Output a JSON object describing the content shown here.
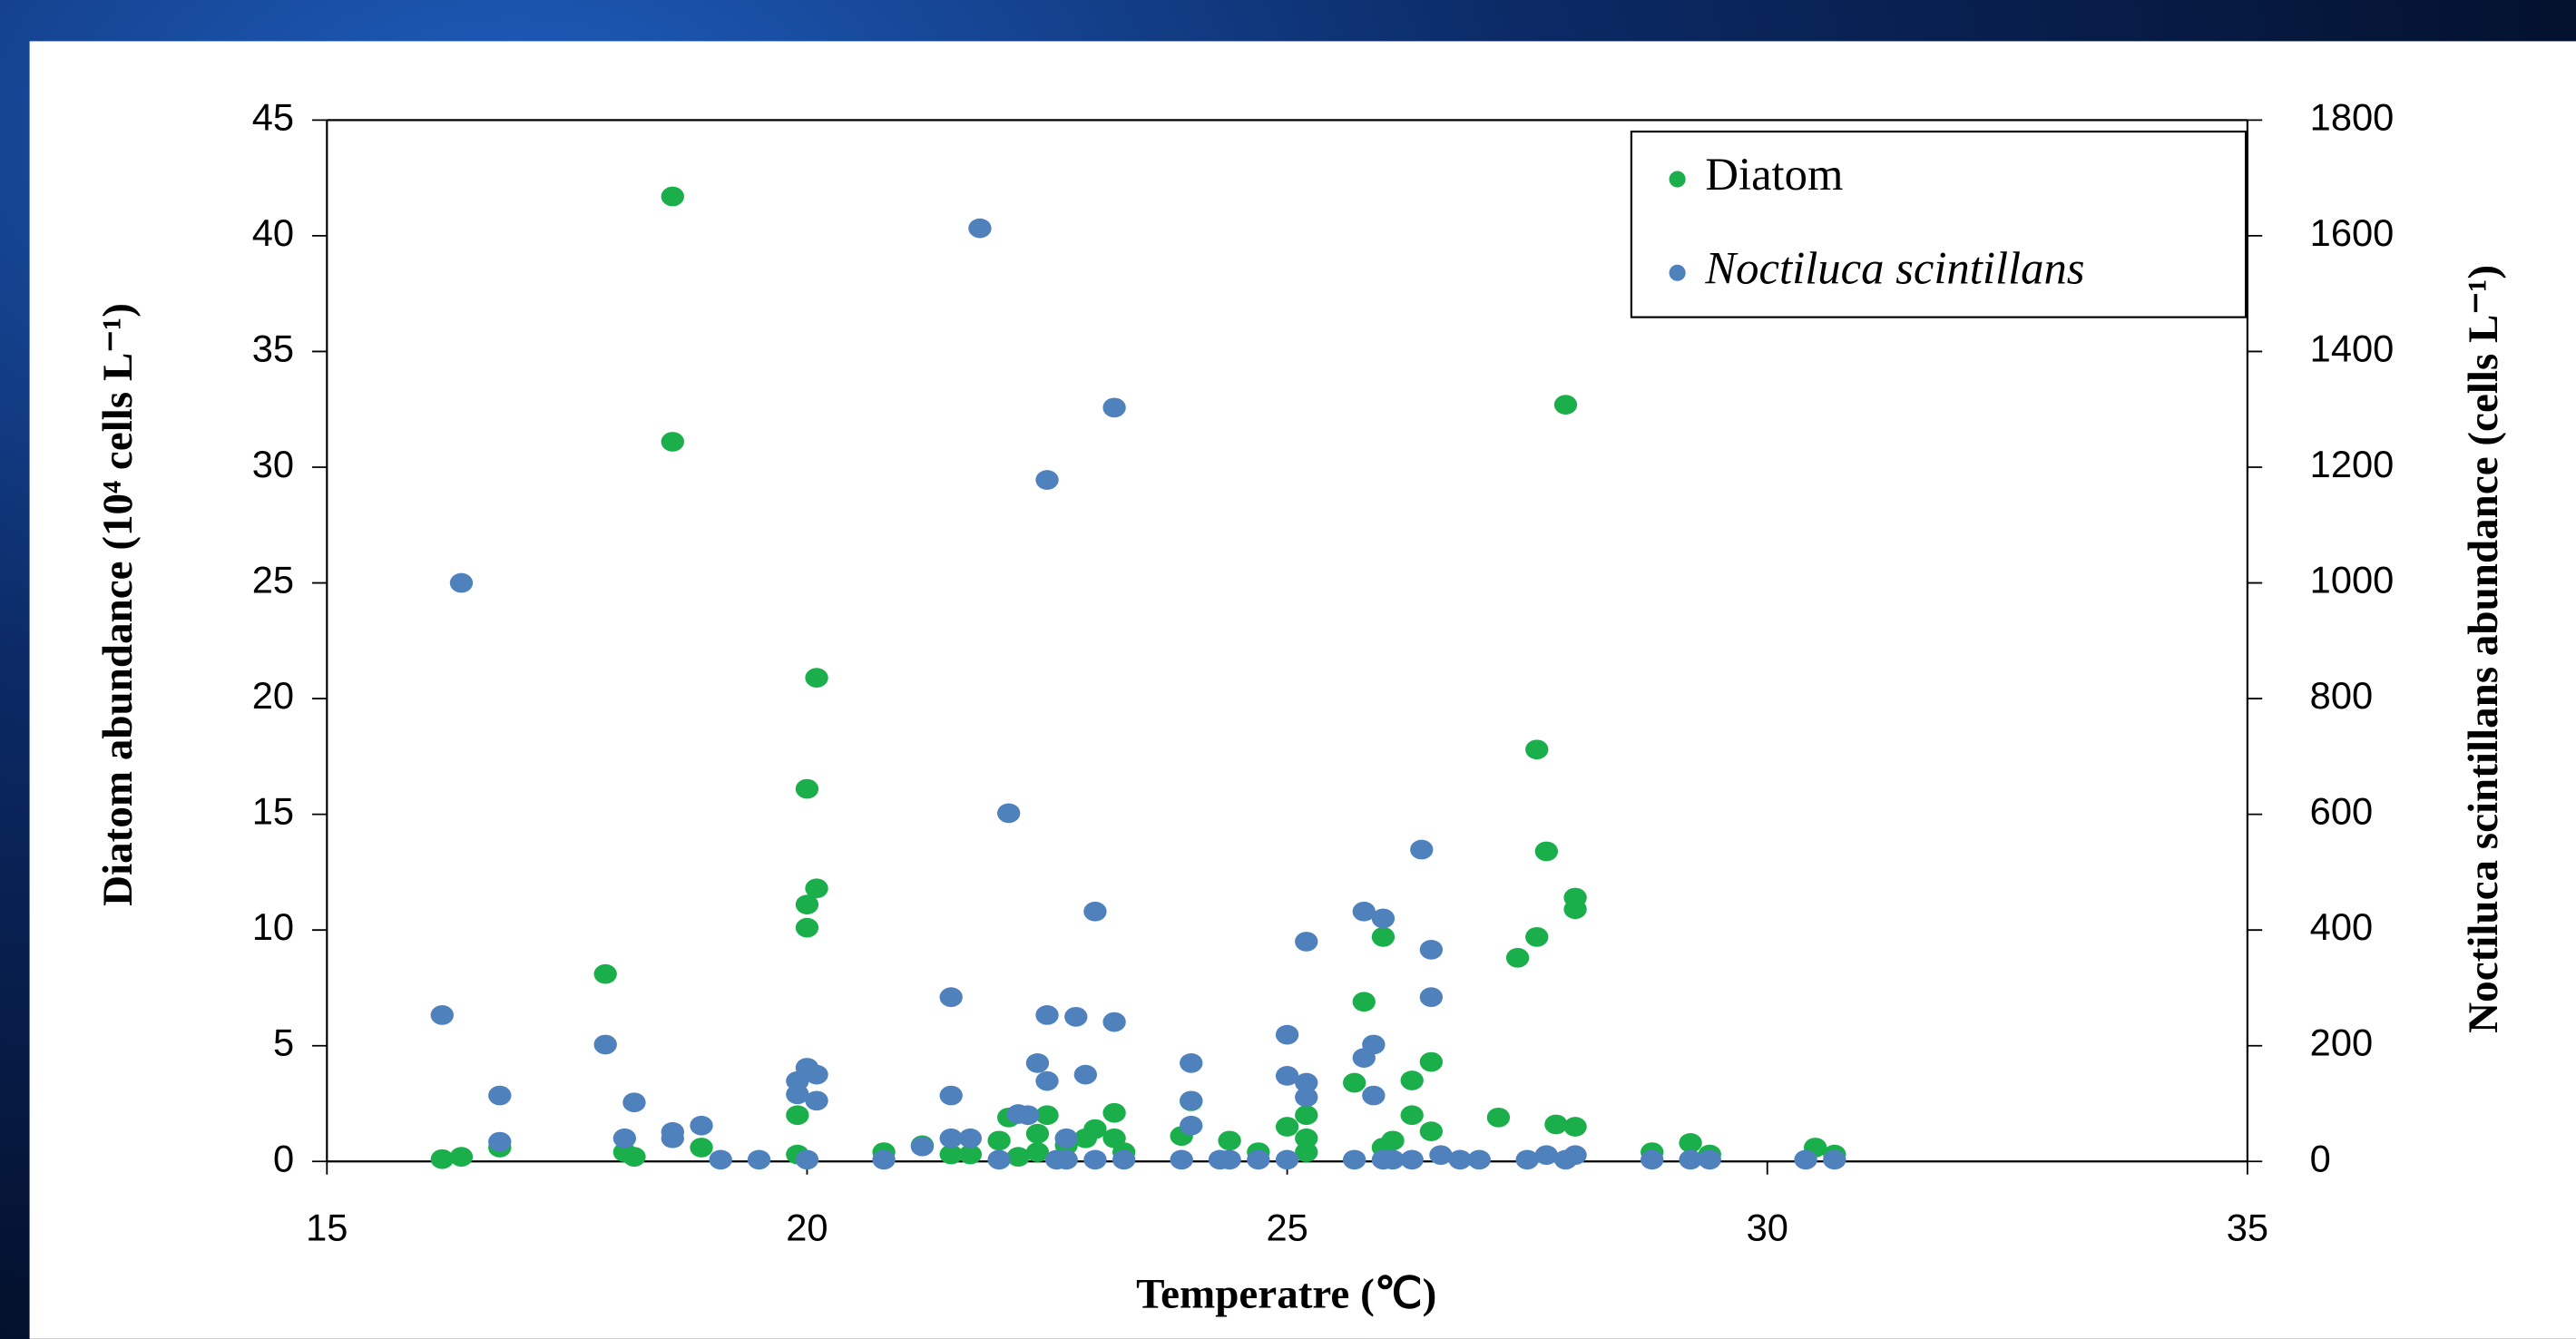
{
  "chart_data": {
    "type": "scatter",
    "x_label": "Temperatre (℃)",
    "y_label": "Diatom abundance (10⁴ cells L⁻¹)",
    "y2_label": "Noctiluca scintillans abundance (cells L⁻¹)",
    "xlim": [
      15,
      35
    ],
    "xticks": [
      15,
      20,
      25,
      30,
      35
    ],
    "ylim": [
      0,
      45
    ],
    "yticks": [
      0,
      5,
      10,
      15,
      20,
      25,
      30,
      35,
      40,
      45
    ],
    "y2lim": [
      0,
      1800
    ],
    "y2ticks": [
      0,
      200,
      400,
      600,
      800,
      1000,
      1200,
      1400,
      1600,
      1800
    ],
    "legend": "upper right",
    "grid": false,
    "series": [
      {
        "name": "Diatom",
        "color": "#1aaf4b",
        "axis": "y",
        "x": [
          16.2,
          16.4,
          16.8,
          17.9,
          18.1,
          18.2,
          18.6,
          18.6,
          18.9,
          19.9,
          19.9,
          20.0,
          20.0,
          20.0,
          20.1,
          20.1,
          20.8,
          21.2,
          21.5,
          21.7,
          22.0,
          22.1,
          22.2,
          22.4,
          22.4,
          22.5,
          22.7,
          22.9,
          23.0,
          23.2,
          23.2,
          23.3,
          23.9,
          24.0,
          24.4,
          24.7,
          25.0,
          25.2,
          25.2,
          25.2,
          25.7,
          25.8,
          26.0,
          26.0,
          26.1,
          26.3,
          26.3,
          26.5,
          26.5,
          27.2,
          27.4,
          27.6,
          27.6,
          27.7,
          27.8,
          27.9,
          28.0,
          28.0,
          28.0,
          28.8,
          29.2,
          29.4,
          30.5,
          30.7
        ],
        "values": [
          0.1,
          0.2,
          0.6,
          8.1,
          0.4,
          0.2,
          41.7,
          31.1,
          0.6,
          2.0,
          0.3,
          16.1,
          10.1,
          11.1,
          20.9,
          11.8,
          0.4,
          0.7,
          0.3,
          0.3,
          0.9,
          1.9,
          0.2,
          0.4,
          1.2,
          2.0,
          0.7,
          1.0,
          1.4,
          2.1,
          1.0,
          0.4,
          1.1,
          2.6,
          0.9,
          0.4,
          1.5,
          2.0,
          1.0,
          0.4,
          3.4,
          6.9,
          9.7,
          0.6,
          0.9,
          2.0,
          3.5,
          4.3,
          1.3,
          1.9,
          8.8,
          9.7,
          17.8,
          13.4,
          1.6,
          32.7,
          11.4,
          10.9,
          1.5,
          0.4,
          0.8,
          0.3,
          0.6,
          0.3
        ]
      },
      {
        "name": "Noctiluca scintillans",
        "color": "#4f81bd",
        "axis": "y2",
        "x": [
          16.2,
          16.4,
          16.8,
          16.8,
          17.9,
          18.1,
          18.2,
          18.6,
          18.6,
          18.9,
          19.1,
          19.5,
          19.9,
          19.9,
          20.0,
          20.0,
          20.1,
          20.1,
          20.8,
          21.2,
          21.5,
          21.5,
          21.5,
          21.7,
          21.8,
          22.0,
          22.1,
          22.2,
          22.3,
          22.4,
          22.5,
          22.5,
          22.5,
          22.6,
          22.7,
          22.7,
          22.8,
          22.9,
          23.0,
          23.0,
          23.2,
          23.2,
          23.3,
          23.9,
          24.0,
          24.0,
          24.0,
          24.3,
          24.4,
          24.7,
          25.0,
          25.0,
          25.0,
          25.2,
          25.2,
          25.2,
          25.7,
          25.8,
          25.8,
          25.9,
          25.9,
          26.0,
          26.0,
          26.1,
          26.4,
          26.3,
          26.5,
          26.5,
          26.6,
          26.8,
          27.0,
          27.5,
          27.7,
          27.9,
          28.0,
          28.8,
          29.2,
          29.4,
          30.4,
          30.7
        ],
        "values": [
          253,
          1000,
          114,
          34,
          202,
          40,
          102,
          51,
          40,
          62,
          3,
          3,
          139,
          116,
          162,
          3,
          105,
          150,
          3,
          26,
          284,
          114,
          40,
          40,
          1613,
          3,
          602,
          82,
          80,
          170,
          253,
          1178,
          139,
          3,
          40,
          3,
          250,
          150,
          3,
          432,
          1303,
          241,
          3,
          3,
          170,
          105,
          62,
          3,
          3,
          3,
          219,
          148,
          3,
          136,
          111,
          380,
          3,
          432,
          179,
          202,
          114,
          420,
          3,
          3,
          539,
          3,
          366,
          284,
          11,
          3,
          3,
          3,
          11,
          3,
          11,
          3,
          3,
          3,
          3,
          3
        ]
      }
    ]
  }
}
